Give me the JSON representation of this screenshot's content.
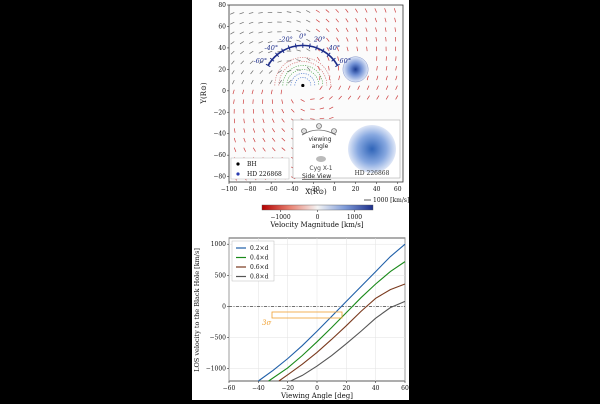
{
  "chart_data": [
    {
      "type": "scatter",
      "title": "",
      "xlabel": "X(R⊙)",
      "ylabel": "Y(R⊙)",
      "xlim": [
        -100,
        65
      ],
      "ylim": [
        -85,
        80
      ],
      "xticks": [
        -100,
        -80,
        -60,
        -40,
        -20,
        0,
        20,
        40,
        60
      ],
      "yticks": [
        -80,
        -60,
        -40,
        -20,
        0,
        20,
        40,
        60,
        80
      ],
      "angle_labels": [
        "-60°",
        "-40°",
        "-20°",
        "0°",
        "20°",
        "40°",
        "60°"
      ],
      "angles": [
        -60,
        -40,
        -20,
        0,
        20,
        40,
        60
      ],
      "angle_center": [
        -30,
        5
      ],
      "angle_radius": 38,
      "black_hole": {
        "x": -30,
        "y": 5
      },
      "companion": {
        "x": 20,
        "y": 20,
        "radius": 12
      },
      "legend": [
        {
          "label": "BH",
          "color": "#000000"
        },
        {
          "label": "HD 226868",
          "color": "#2a3cb0"
        }
      ],
      "inset": {
        "label_viewing": "viewing",
        "label_angle": "angle",
        "label_source": "Cyg X-1",
        "label_star": "HD 226868",
        "label_view": "Side View"
      },
      "scale_arrow_label": "1000 [km/s]",
      "colorbar": {
        "label": "Velocity Magnitude [km/s]",
        "ticks": [
          -1000,
          0,
          1000
        ],
        "range": [
          -1500,
          1500
        ]
      }
    },
    {
      "type": "line",
      "title": "",
      "xlabel": "Viewing Angle [deg]",
      "ylabel": "LOS velocity to the Black Hole [km/s]",
      "xlim": [
        -60,
        60
      ],
      "ylim": [
        -1200,
        1100
      ],
      "xticks": [
        -60,
        -40,
        -20,
        0,
        20,
        40,
        60
      ],
      "yticks": [
        -1000,
        -500,
        0,
        500,
        1000
      ],
      "zero_line": 0,
      "annotation": "3σ",
      "series": [
        {
          "name": "0.2×d",
          "color": "#1f5fa8",
          "x": [
            -40,
            -30,
            -20,
            -10,
            0,
            10,
            20,
            30,
            40,
            50,
            60
          ],
          "y": [
            -1200,
            -1030,
            -840,
            -630,
            -400,
            -160,
            80,
            320,
            560,
            800,
            1000
          ]
        },
        {
          "name": "0.4×d",
          "color": "#1a8a1a",
          "x": [
            -33,
            -20,
            -10,
            0,
            10,
            20,
            30,
            40,
            50,
            60
          ],
          "y": [
            -1200,
            -990,
            -790,
            -570,
            -340,
            -100,
            140,
            360,
            560,
            720
          ]
        },
        {
          "name": "0.6×d",
          "color": "#7a3a1e",
          "x": [
            -26,
            -20,
            -10,
            0,
            10,
            20,
            30,
            40,
            50,
            60
          ],
          "y": [
            -1200,
            -1100,
            -930,
            -740,
            -530,
            -310,
            -80,
            130,
            270,
            360
          ]
        },
        {
          "name": "0.8×d",
          "color": "#555555",
          "x": [
            -18,
            -10,
            0,
            10,
            20,
            30,
            40,
            50,
            60
          ],
          "y": [
            -1200,
            -1110,
            -960,
            -790,
            -600,
            -400,
            -190,
            -20,
            80
          ]
        }
      ]
    }
  ]
}
